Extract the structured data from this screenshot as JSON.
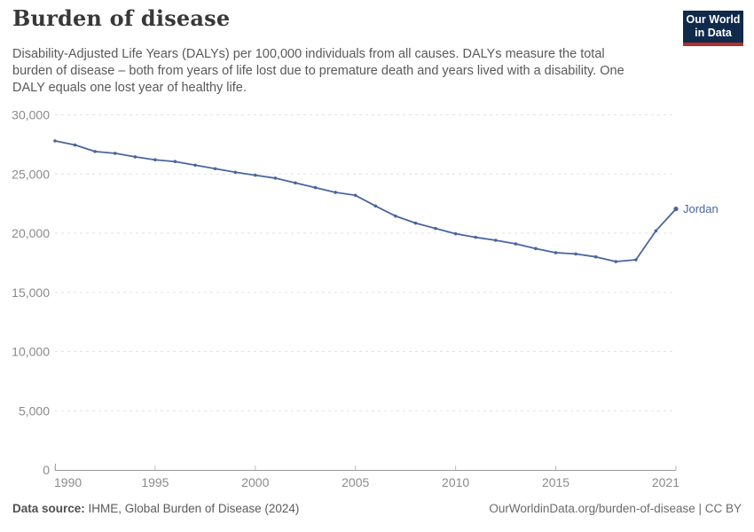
{
  "header": {
    "title": "Burden of disease",
    "subtitle_lines": [
      "Disability-Adjusted Life Years (DALYs) per 100,000 individuals from all causes. DALYs measure the total",
      "burden of disease – both from years of life lost due to premature death and years lived with a disability. One",
      "DALY equals one lost year of healthy life."
    ]
  },
  "logo": {
    "line1": "Our World",
    "line2": "in Data",
    "bg_color": "#102a4c",
    "accent_color": "#b62c28"
  },
  "chart_data": {
    "type": "line",
    "title": "Burden of disease",
    "xlabel": "",
    "ylabel": "DALYs per 100,000 individuals",
    "xlim": [
      1990,
      2021
    ],
    "ylim": [
      0,
      30000
    ],
    "x_ticks": [
      1990,
      1995,
      2000,
      2005,
      2010,
      2015,
      2021
    ],
    "y_ticks": [
      0,
      5000,
      10000,
      15000,
      20000,
      25000,
      30000
    ],
    "grid": "horizontal-dashed",
    "legend_position": "end-of-line-label",
    "series": [
      {
        "name": "Jordan",
        "color": "#4a669c",
        "x": [
          1990,
          1991,
          1992,
          1993,
          1994,
          1995,
          1996,
          1997,
          1998,
          1999,
          2000,
          2001,
          2002,
          2003,
          2004,
          2005,
          2006,
          2007,
          2008,
          2009,
          2010,
          2011,
          2012,
          2013,
          2014,
          2015,
          2016,
          2017,
          2018,
          2019,
          2020,
          2021
        ],
        "values": [
          27800,
          27450,
          26900,
          26750,
          26450,
          26200,
          26050,
          25750,
          25450,
          25150,
          24900,
          24650,
          24250,
          23850,
          23450,
          23200,
          22300,
          21450,
          20850,
          20400,
          19950,
          19650,
          19400,
          19100,
          18700,
          18350,
          18250,
          18000,
          17600,
          17750,
          20200,
          22050
        ]
      }
    ]
  },
  "colors": {
    "gridline": "#e2e2e2",
    "axis": "#999999",
    "tick_label": "#8b8b8b",
    "series_blue": "#4a669c"
  },
  "footer": {
    "datasource_label": "Data source:",
    "datasource_value": "IHME, Global Burden of Disease (2024)",
    "credit": "OurWorldinData.org/burden-of-disease | CC BY"
  }
}
